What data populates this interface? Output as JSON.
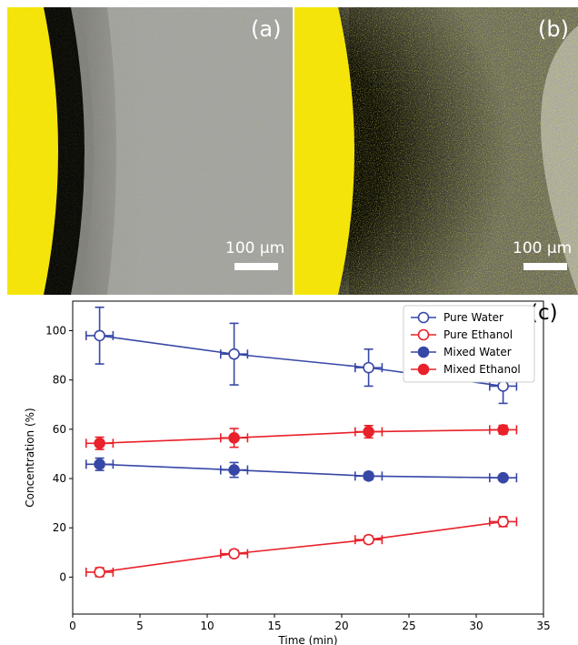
{
  "panels": [
    {
      "letter": "(a)",
      "scale_label": "100 µm"
    },
    {
      "letter": "(b)",
      "scale_label": "100 µm"
    }
  ],
  "chart_label": "(c)",
  "colors": {
    "blue": "#3747a6",
    "red": "#e8212a",
    "yellow": "#f4e409",
    "dark": "#0b0b09",
    "gray": "#a3a3a1"
  },
  "chart_data": {
    "type": "line",
    "title": "",
    "xlabel": "Time (min)",
    "ylabel": "Concentration (%)",
    "xlim": [
      0,
      35
    ],
    "ylim": [
      -15,
      112
    ],
    "xticks": [
      0,
      5,
      10,
      15,
      20,
      25,
      30,
      35
    ],
    "yticks": [
      0,
      20,
      40,
      60,
      80,
      100
    ],
    "legend_position": "top-right",
    "x": [
      2,
      12,
      22,
      32
    ],
    "x_err": 1,
    "series": [
      {
        "name": "Pure Water",
        "color": "#3747a6",
        "marker": "open-circle",
        "values": [
          98,
          90.5,
          85,
          77.5
        ],
        "y_err": [
          11.5,
          12.5,
          7.5,
          7
        ]
      },
      {
        "name": "Pure Ethanol",
        "color": "#e8212a",
        "marker": "open-circle",
        "values": [
          2,
          9.5,
          15.2,
          22.5
        ],
        "y_err": [
          1.8,
          1.5,
          1.5,
          2
        ]
      },
      {
        "name": "Mixed Water",
        "color": "#3747a6",
        "marker": "filled-circle",
        "values": [
          45.8,
          43.5,
          41,
          40.3
        ],
        "y_err": [
          2.5,
          3,
          1.5,
          1
        ]
      },
      {
        "name": "Mixed Ethanol",
        "color": "#e8212a",
        "marker": "filled-circle",
        "values": [
          54.3,
          56.5,
          59,
          59.8
        ],
        "y_err": [
          2.5,
          3.8,
          2.5,
          1.8
        ]
      }
    ]
  }
}
